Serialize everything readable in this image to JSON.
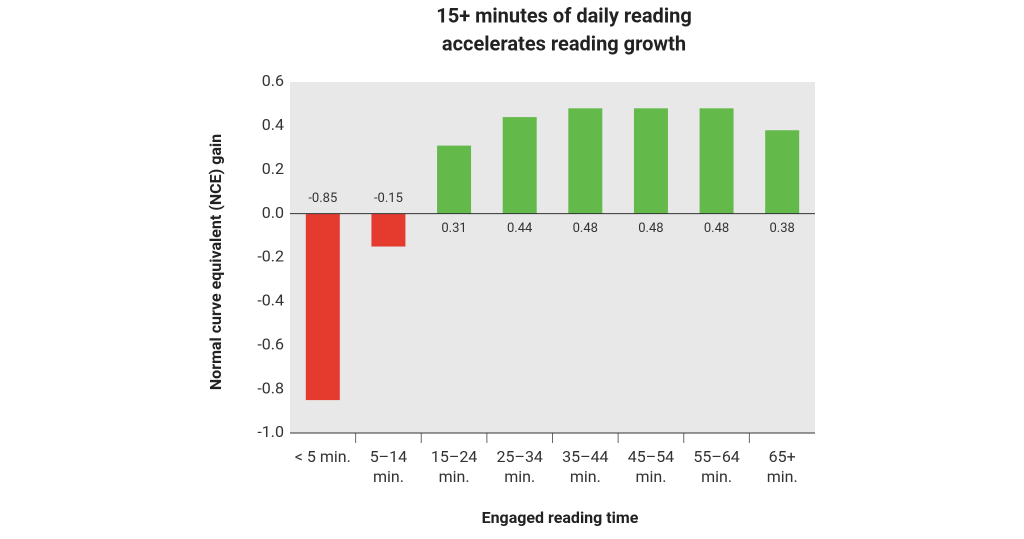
{
  "chart_data": {
    "type": "bar",
    "title": [
      "15+ minutes of daily reading",
      "accelerates reading growth"
    ],
    "x_label": "Engaged reading time",
    "y_label": "Normal curve equivalent (NCE) gain",
    "categories": [
      [
        "< 5 min."
      ],
      [
        "5–14",
        "min."
      ],
      [
        "15–24",
        "min."
      ],
      [
        "25–34",
        "min."
      ],
      [
        "35–44",
        "min."
      ],
      [
        "45–54",
        "min."
      ],
      [
        "55–64",
        "min."
      ],
      [
        "65+",
        "min."
      ]
    ],
    "values": [
      -0.85,
      -0.15,
      0.31,
      0.44,
      0.48,
      0.48,
      0.48,
      0.38
    ],
    "negative_color": "#e53b2f",
    "positive_color": "#63b94a",
    "ylim": [
      -1.0,
      0.6
    ],
    "yticks": [
      {
        "value": -1.0,
        "label": "-1.0"
      },
      -0.8,
      -0.6,
      -0.4,
      -0.2,
      {
        "value": 0,
        "label": "0.0"
      },
      0.2,
      0.4,
      0.6
    ],
    "background": "#e8e8e8"
  }
}
